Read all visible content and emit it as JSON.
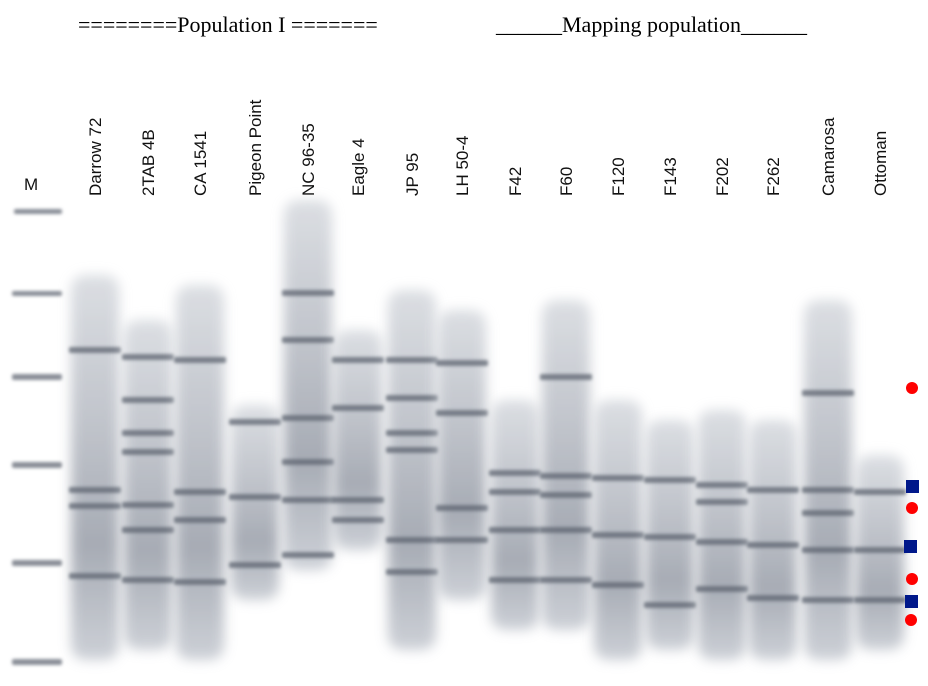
{
  "header": {
    "left": "========Population I =======",
    "right": "______Mapping population______"
  },
  "marker_label": "M",
  "lanes": [
    "Darrow 72",
    "2TAB 4B",
    "CA 1541",
    "Pigeon Point",
    "NC 96-35",
    "Eagle 4",
    "JP 95",
    "LH 50-4",
    "F42",
    "F60",
    "F120",
    "F143",
    "F202",
    "F262",
    "Camarosa",
    "Ottoman"
  ]
}
